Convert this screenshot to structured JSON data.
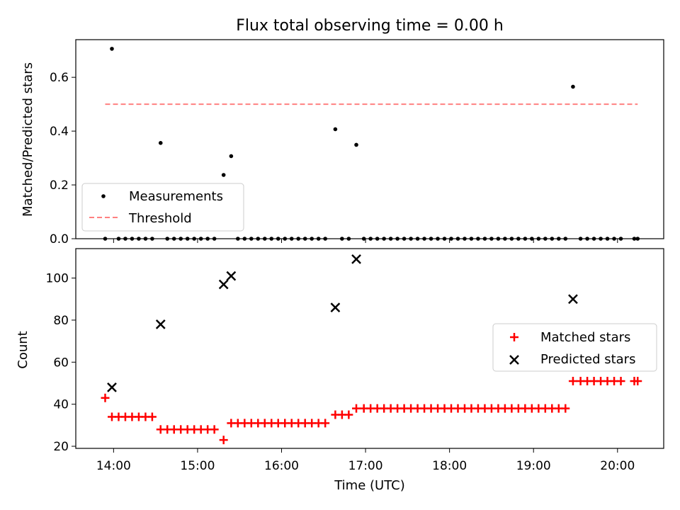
{
  "chart_data": [
    {
      "type": "scatter",
      "title": "Flux total observing time = 0.00 h",
      "ylabel": "Matched/Predicted stars",
      "xlabel": "",
      "x_unit": "hours UTC",
      "xlim": [
        13.55,
        20.55
      ],
      "ylim": [
        0,
        0.74
      ],
      "yticks": [
        0.0,
        0.2,
        0.4,
        0.6
      ],
      "ytick_labels": [
        "0.0",
        "0.2",
        "0.4",
        "0.6"
      ],
      "legend_position": "lower-left",
      "series": [
        {
          "name": "Measurements",
          "kind": "scatter",
          "color": "#000000",
          "points": [
            [
              13.9,
              0
            ],
            [
              13.98,
              0.706
            ],
            [
              14.06,
              0
            ],
            [
              14.14,
              0
            ],
            [
              14.22,
              0
            ],
            [
              14.3,
              0
            ],
            [
              14.38,
              0
            ],
            [
              14.46,
              0
            ],
            [
              14.56,
              0.356
            ],
            [
              14.64,
              0
            ],
            [
              14.72,
              0
            ],
            [
              14.8,
              0
            ],
            [
              14.88,
              0
            ],
            [
              14.96,
              0
            ],
            [
              15.04,
              0
            ],
            [
              15.12,
              0
            ],
            [
              15.2,
              0
            ],
            [
              15.31,
              0.237
            ],
            [
              15.4,
              0.307
            ],
            [
              15.48,
              0
            ],
            [
              15.56,
              0
            ],
            [
              15.64,
              0
            ],
            [
              15.72,
              0
            ],
            [
              15.8,
              0
            ],
            [
              15.88,
              0
            ],
            [
              15.96,
              0
            ],
            [
              16.04,
              0
            ],
            [
              16.12,
              0
            ],
            [
              16.2,
              0
            ],
            [
              16.28,
              0
            ],
            [
              16.36,
              0
            ],
            [
              16.44,
              0
            ],
            [
              16.52,
              0
            ],
            [
              16.64,
              0.407
            ],
            [
              16.72,
              0
            ],
            [
              16.8,
              0
            ],
            [
              16.89,
              0.349
            ],
            [
              16.98,
              0
            ],
            [
              17.06,
              0
            ],
            [
              17.14,
              0
            ],
            [
              17.22,
              0
            ],
            [
              17.3,
              0
            ],
            [
              17.38,
              0
            ],
            [
              17.46,
              0
            ],
            [
              17.54,
              0
            ],
            [
              17.62,
              0
            ],
            [
              17.7,
              0
            ],
            [
              17.78,
              0
            ],
            [
              17.86,
              0
            ],
            [
              17.94,
              0
            ],
            [
              18.02,
              0
            ],
            [
              18.1,
              0
            ],
            [
              18.18,
              0
            ],
            [
              18.26,
              0
            ],
            [
              18.34,
              0
            ],
            [
              18.42,
              0
            ],
            [
              18.5,
              0
            ],
            [
              18.58,
              0
            ],
            [
              18.66,
              0
            ],
            [
              18.74,
              0
            ],
            [
              18.82,
              0
            ],
            [
              18.9,
              0
            ],
            [
              18.98,
              0
            ],
            [
              19.06,
              0
            ],
            [
              19.14,
              0
            ],
            [
              19.22,
              0
            ],
            [
              19.3,
              0
            ],
            [
              19.38,
              0
            ],
            [
              19.47,
              0.565
            ],
            [
              19.56,
              0
            ],
            [
              19.64,
              0
            ],
            [
              19.72,
              0
            ],
            [
              19.8,
              0
            ],
            [
              19.88,
              0
            ],
            [
              19.96,
              0
            ],
            [
              20.04,
              0
            ],
            [
              20.2,
              0
            ],
            [
              20.24,
              0
            ]
          ]
        },
        {
          "name": "Threshold",
          "kind": "line",
          "color": "#ff8080",
          "dash": "dashed",
          "points": [
            [
              13.9,
              0.5
            ],
            [
              20.24,
              0.5
            ]
          ]
        }
      ]
    },
    {
      "type": "scatter",
      "title": "",
      "ylabel": "Count",
      "xlabel": "Time (UTC)",
      "x_unit": "hours UTC",
      "xlim": [
        13.55,
        20.55
      ],
      "ylim": [
        19,
        114
      ],
      "yticks": [
        20,
        40,
        60,
        80,
        100
      ],
      "ytick_labels": [
        "20",
        "40",
        "60",
        "80",
        "100"
      ],
      "xticks": [
        14,
        15,
        16,
        17,
        18,
        19,
        20
      ],
      "xtick_labels": [
        "14:00",
        "15:00",
        "16:00",
        "17:00",
        "18:00",
        "19:00",
        "20:00"
      ],
      "legend_position": "center-right",
      "series": [
        {
          "name": "Matched stars",
          "kind": "scatter",
          "marker": "plus",
          "color": "#ff0000",
          "points": [
            [
              13.9,
              43
            ],
            [
              13.98,
              34
            ],
            [
              14.06,
              34
            ],
            [
              14.14,
              34
            ],
            [
              14.22,
              34
            ],
            [
              14.3,
              34
            ],
            [
              14.38,
              34
            ],
            [
              14.46,
              34
            ],
            [
              14.56,
              28
            ],
            [
              14.64,
              28
            ],
            [
              14.72,
              28
            ],
            [
              14.8,
              28
            ],
            [
              14.88,
              28
            ],
            [
              14.96,
              28
            ],
            [
              15.04,
              28
            ],
            [
              15.12,
              28
            ],
            [
              15.2,
              28
            ],
            [
              15.31,
              23
            ],
            [
              15.4,
              31
            ],
            [
              15.48,
              31
            ],
            [
              15.56,
              31
            ],
            [
              15.64,
              31
            ],
            [
              15.72,
              31
            ],
            [
              15.8,
              31
            ],
            [
              15.88,
              31
            ],
            [
              15.96,
              31
            ],
            [
              16.04,
              31
            ],
            [
              16.12,
              31
            ],
            [
              16.2,
              31
            ],
            [
              16.28,
              31
            ],
            [
              16.36,
              31
            ],
            [
              16.44,
              31
            ],
            [
              16.52,
              31
            ],
            [
              16.64,
              35
            ],
            [
              16.72,
              35
            ],
            [
              16.8,
              35
            ],
            [
              16.89,
              38
            ],
            [
              16.98,
              38
            ],
            [
              17.06,
              38
            ],
            [
              17.14,
              38
            ],
            [
              17.22,
              38
            ],
            [
              17.3,
              38
            ],
            [
              17.38,
              38
            ],
            [
              17.46,
              38
            ],
            [
              17.54,
              38
            ],
            [
              17.62,
              38
            ],
            [
              17.7,
              38
            ],
            [
              17.78,
              38
            ],
            [
              17.86,
              38
            ],
            [
              17.94,
              38
            ],
            [
              18.02,
              38
            ],
            [
              18.1,
              38
            ],
            [
              18.18,
              38
            ],
            [
              18.26,
              38
            ],
            [
              18.34,
              38
            ],
            [
              18.42,
              38
            ],
            [
              18.5,
              38
            ],
            [
              18.58,
              38
            ],
            [
              18.66,
              38
            ],
            [
              18.74,
              38
            ],
            [
              18.82,
              38
            ],
            [
              18.9,
              38
            ],
            [
              18.98,
              38
            ],
            [
              19.06,
              38
            ],
            [
              19.14,
              38
            ],
            [
              19.22,
              38
            ],
            [
              19.3,
              38
            ],
            [
              19.38,
              38
            ],
            [
              19.47,
              51
            ],
            [
              19.56,
              51
            ],
            [
              19.64,
              51
            ],
            [
              19.72,
              51
            ],
            [
              19.8,
              51
            ],
            [
              19.88,
              51
            ],
            [
              19.96,
              51
            ],
            [
              20.04,
              51
            ],
            [
              20.2,
              51
            ],
            [
              20.24,
              51
            ]
          ]
        },
        {
          "name": "Predicted stars",
          "kind": "scatter",
          "marker": "x",
          "color": "#000000",
          "points": [
            [
              13.98,
              48
            ],
            [
              14.56,
              78
            ],
            [
              15.31,
              97
            ],
            [
              15.4,
              101
            ],
            [
              16.64,
              86
            ],
            [
              16.89,
              109
            ],
            [
              19.47,
              90
            ]
          ]
        }
      ]
    }
  ]
}
